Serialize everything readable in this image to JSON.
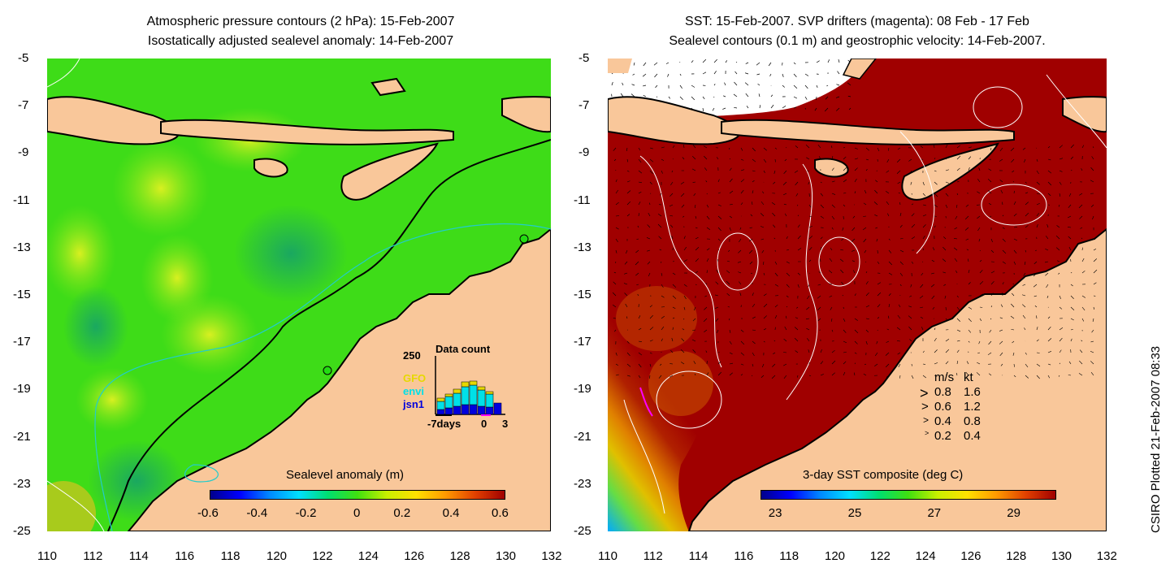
{
  "left_panel": {
    "title_line1": "Atmospheric pressure contours (2 hPa): 15-Feb-2007",
    "title_line2": "Isostatically adjusted sealevel anomaly: 14-Feb-2007",
    "colorbar_label": "Sealevel anomaly (m)",
    "colorbar_ticks": [
      "-0.6",
      "-0.4",
      "-0.2",
      "0",
      "0.2",
      "0.4",
      "0.6"
    ],
    "inset": {
      "title": "Data count",
      "y_label": "250",
      "x_labels": [
        "-7days",
        "0",
        "3"
      ],
      "legend": [
        {
          "name": "GFO",
          "color": "#e6d800"
        },
        {
          "name": "envi",
          "color": "#00e0e8"
        },
        {
          "name": "jsn1",
          "color": "#0000dd"
        }
      ]
    }
  },
  "right_panel": {
    "title_line1": "SST: 15-Feb-2007. SVP drifters (magenta): 08 Feb - 17 Feb",
    "title_line2": "Sealevel contours (0.1 m) and geostrophic velocity: 14-Feb-2007.",
    "colorbar_label": "3-day SST composite (deg C)",
    "colorbar_ticks": [
      "23",
      "25",
      "27",
      "29"
    ],
    "velocity_legend": {
      "header_ms": "m/s",
      "header_kt": "kt",
      "rows": [
        {
          "ms": "0.8",
          "kt": "1.6"
        },
        {
          "ms": "0.6",
          "kt": "1.2"
        },
        {
          "ms": "0.4",
          "kt": "0.8"
        },
        {
          "ms": "0.2",
          "kt": "0.4"
        }
      ]
    }
  },
  "y_axis_ticks": [
    "-5",
    "-7",
    "-9",
    "-11",
    "-13",
    "-15",
    "-17",
    "-19",
    "-21",
    "-23",
    "-25"
  ],
  "x_axis_ticks": [
    "110",
    "112",
    "114",
    "116",
    "118",
    "120",
    "122",
    "124",
    "126",
    "128",
    "130",
    "132"
  ],
  "credit": "CSIRO Plotted 21-Feb-2007 08:33",
  "colors": {
    "land": "#f9c79a",
    "ssh_green": "#22dd11",
    "ssh_light": "#aaf020",
    "sst_dark": "#a00000",
    "current_line": "#22cccc"
  }
}
